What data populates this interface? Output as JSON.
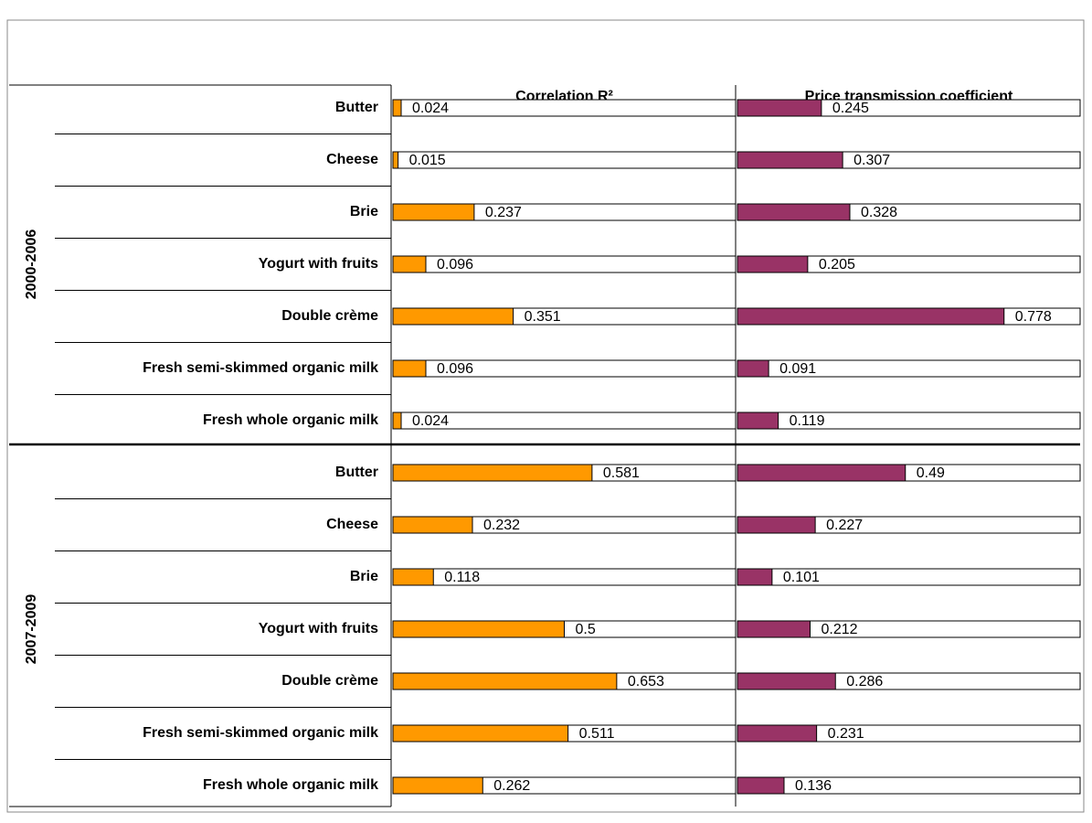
{
  "chart_data": {
    "type": "bar",
    "orientation": "horizontal",
    "groups": [
      "2000-2006",
      "2007-2009"
    ],
    "categories": [
      [
        "Butter",
        "Cheese",
        "Brie",
        "Yogurt with fruits",
        "Double crème",
        "Fresh semi-skimmed organic milk",
        "Fresh whole organic milk"
      ],
      [
        "Butter",
        "Cheese",
        "Brie",
        "Yogurt with fruits",
        "Double crème",
        "Fresh semi-skimmed organic milk",
        "Fresh whole organic milk"
      ]
    ],
    "series": [
      {
        "name": "Correlation R²",
        "color": "#FF9900",
        "values": [
          [
            0.024,
            0.015,
            0.237,
            0.096,
            0.351,
            0.096,
            0.024
          ],
          [
            0.581,
            0.232,
            0.118,
            0.5,
            0.653,
            0.511,
            0.262
          ]
        ]
      },
      {
        "name": "Price transmission coefficient",
        "color": "#993366",
        "values": [
          [
            0.245,
            0.307,
            0.328,
            0.205,
            0.778,
            0.091,
            0.119
          ],
          [
            0.49,
            0.227,
            0.101,
            0.212,
            0.286,
            0.231,
            0.136
          ]
        ]
      }
    ],
    "xlim": [
      0,
      1
    ]
  }
}
